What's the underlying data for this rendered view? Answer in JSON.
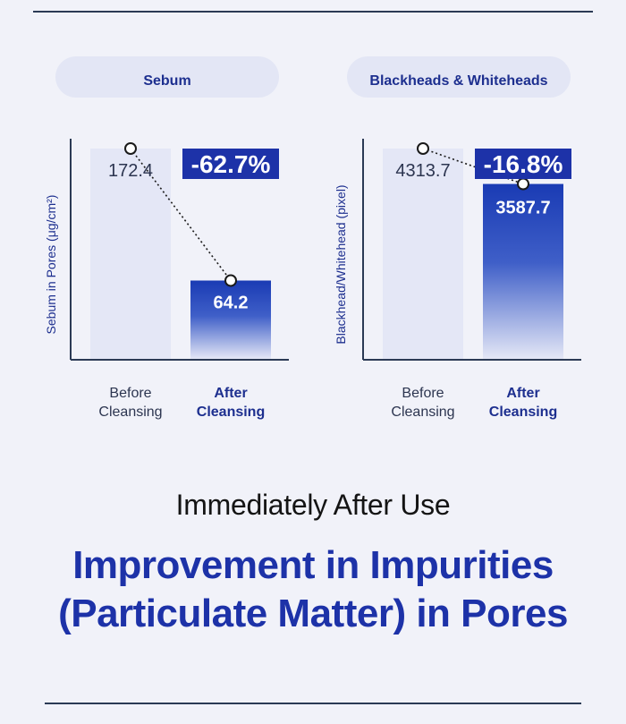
{
  "chart_data": [
    {
      "type": "bar",
      "title": "Sebum",
      "ylabel": "Sebum in Pores (μg/cm²)",
      "categories": [
        "Before Cleansing",
        "After Cleansing"
      ],
      "values": [
        172.4,
        64.2
      ],
      "value_labels": [
        "172.4",
        "64.2"
      ],
      "change_label": "-62.7%",
      "ylim": [
        0,
        172.4
      ],
      "grid": false,
      "colors": {
        "before": "#e4e7f6",
        "after_top": "#1a3bb4",
        "after_bottom": "#e4e7f6",
        "accent": "#1d32a8"
      }
    },
    {
      "type": "bar",
      "title": "Blackheads & Whiteheads",
      "ylabel": "Blackhead/Whitehead (pixel)",
      "categories": [
        "Before Cleansing",
        "After Cleansing"
      ],
      "values": [
        4313.7,
        3587.7
      ],
      "value_labels": [
        "4313.7",
        "3587.7"
      ],
      "change_label": "-16.8%",
      "ylim": [
        0,
        4313.7
      ],
      "grid": false,
      "colors": {
        "before": "#e4e7f6",
        "after_top": "#1a3bb4",
        "after_bottom": "#e4e7f6",
        "accent": "#1d32a8"
      }
    }
  ],
  "text": {
    "subtitle": "Immediately After Use",
    "headline_line1": "Improvement in Impurities",
    "headline_line2": "(Particulate Matter) in Pores"
  }
}
